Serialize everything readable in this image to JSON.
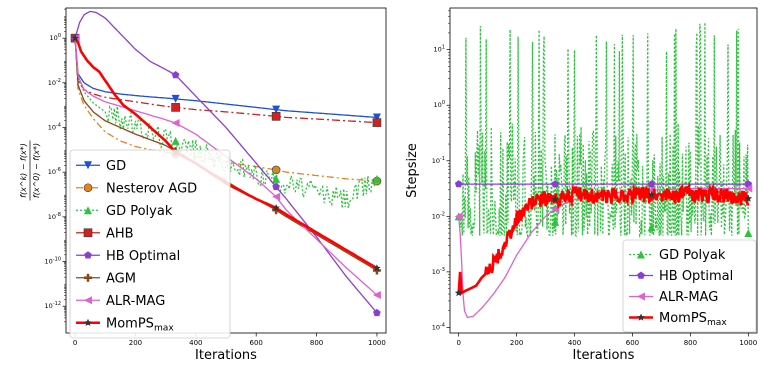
{
  "chart_data": [
    {
      "type": "line",
      "title": "",
      "xlabel": "Iterations",
      "ylabel": "(f(x^k) - f(x*)) / (f(x^0) - f(x*))",
      "ylabel_parts": {
        "numerator": "f(x^k) − f(x*)",
        "denominator": "f(x^0) − f(x*)"
      },
      "yscale": "log",
      "xlim": [
        -30,
        1030
      ],
      "ylim_exp": [
        -13.2,
        1.35
      ],
      "xticks": [
        0,
        200,
        400,
        600,
        800,
        1000
      ],
      "yticks_exp": [
        0,
        -2,
        -4,
        -6,
        -8,
        -10,
        -12
      ],
      "legend_position": "lower-left",
      "series": [
        {
          "name": "GD",
          "color": "#1f4fd8",
          "dash": "",
          "marker": "triangle-down",
          "x": [
            0,
            10,
            30,
            60,
            100,
            150,
            200,
            250,
            300,
            333,
            400,
            500,
            600,
            666,
            700,
            800,
            900,
            1000
          ],
          "y_exp": [
            0,
            -1.6,
            -2.0,
            -2.25,
            -2.4,
            -2.5,
            -2.57,
            -2.63,
            -2.68,
            -2.72,
            -2.8,
            -2.95,
            -3.1,
            -3.2,
            -3.25,
            -3.35,
            -3.45,
            -3.55
          ]
        },
        {
          "name": "Nesterov AGD",
          "color": "#e8821e",
          "dash": "7,3,2,3",
          "marker": "circle",
          "x": [
            0,
            10,
            30,
            60,
            100,
            150,
            200,
            250,
            300,
            350,
            400,
            500,
            600,
            666,
            700,
            800,
            900,
            1000
          ],
          "y_exp": [
            0,
            -2.3,
            -3.0,
            -3.6,
            -4.2,
            -4.6,
            -4.85,
            -5.0,
            -5.1,
            -5.2,
            -5.3,
            -5.55,
            -5.75,
            -5.9,
            -6.0,
            -6.15,
            -6.3,
            -6.4
          ]
        },
        {
          "name": "GD Polyak",
          "color": "#2fc23f",
          "dash": "2,2",
          "marker": "triangle-up",
          "x": [
            0,
            10,
            30,
            60,
            100,
            150,
            200,
            250,
            300,
            333,
            400,
            500,
            600,
            666,
            700,
            800,
            900,
            1000
          ],
          "y_exp": [
            0,
            -1.8,
            -2.4,
            -2.9,
            -3.3,
            -3.6,
            -3.9,
            -4.2,
            -4.5,
            -4.6,
            -5.0,
            -5.6,
            -6.1,
            -6.3,
            -6.5,
            -6.9,
            -7.2,
            -6.3
          ]
        },
        {
          "name": "AHB",
          "color": "#d42020",
          "dash": "8,3,2,3",
          "marker": "square",
          "x": [
            0,
            10,
            30,
            60,
            100,
            150,
            200,
            250,
            300,
            333,
            400,
            500,
            600,
            666,
            700,
            800,
            900,
            1000
          ],
          "y_exp": [
            0,
            -1.9,
            -2.3,
            -2.5,
            -2.65,
            -2.75,
            -2.85,
            -2.95,
            -3.05,
            -3.1,
            -3.2,
            -3.3,
            -3.42,
            -3.5,
            -3.55,
            -3.62,
            -3.7,
            -3.78
          ]
        },
        {
          "name": "HB Optimal",
          "color": "#8a3fd1",
          "dash": "",
          "marker": "pentagon",
          "x": [
            0,
            15,
            30,
            50,
            70,
            100,
            150,
            200,
            250,
            300,
            333,
            400,
            500,
            600,
            700,
            800,
            900,
            1000
          ],
          "y_exp": [
            0,
            0.7,
            1.05,
            1.2,
            1.15,
            0.9,
            0.2,
            -0.5,
            -1.05,
            -1.4,
            -1.65,
            -2.6,
            -4.0,
            -5.6,
            -7.2,
            -8.9,
            -10.7,
            -12.3
          ]
        },
        {
          "name": "AGM",
          "color": "#8b4513",
          "dash": "",
          "marker": "plus",
          "x": [
            0,
            10,
            30,
            60,
            100,
            150,
            200,
            250,
            300,
            350,
            400,
            500,
            600,
            666,
            700,
            800,
            900,
            1000
          ],
          "y_exp": [
            0,
            -2.1,
            -2.8,
            -3.3,
            -3.7,
            -4.0,
            -4.3,
            -4.55,
            -4.8,
            -5.2,
            -5.6,
            -6.4,
            -7.2,
            -7.7,
            -8.0,
            -8.8,
            -9.6,
            -10.4
          ]
        },
        {
          "name": "ALR-MAG",
          "color": "#e060d0",
          "dash": "",
          "marker": "triangle-left",
          "x": [
            0,
            10,
            30,
            60,
            100,
            150,
            200,
            250,
            300,
            333,
            400,
            500,
            600,
            666,
            700,
            800,
            900,
            1000
          ],
          "y_exp": [
            0,
            -1.7,
            -2.3,
            -2.6,
            -2.85,
            -3.05,
            -3.25,
            -3.45,
            -3.65,
            -3.8,
            -4.3,
            -5.3,
            -6.3,
            -7.1,
            -7.7,
            -9.0,
            -10.3,
            -11.5
          ]
        },
        {
          "name": "MomPS_max",
          "color": "#ff0000",
          "dash": "",
          "marker": "star",
          "x": [
            0,
            10,
            20,
            40,
            60,
            80,
            100,
            130,
            160,
            200,
            250,
            300,
            333,
            400,
            500,
            600,
            666,
            700,
            800,
            900,
            1000
          ],
          "y_exp": [
            0,
            -0.2,
            -0.6,
            -1.0,
            -1.3,
            -1.5,
            -1.9,
            -2.5,
            -3.0,
            -3.4,
            -4.0,
            -4.6,
            -5.1,
            -5.6,
            -6.5,
            -7.2,
            -7.6,
            -7.9,
            -8.7,
            -9.5,
            -10.3
          ]
        }
      ]
    },
    {
      "type": "line",
      "title": "",
      "xlabel": "Iterations",
      "ylabel": "Stepsize",
      "yscale": "log",
      "xlim": [
        -30,
        1030
      ],
      "ylim_exp": [
        -4.1,
        1.75
      ],
      "xticks": [
        0,
        200,
        400,
        600,
        800,
        1000
      ],
      "yticks_exp": [
        1,
        0,
        -1,
        -2,
        -3,
        -4
      ],
      "legend_position": "lower-right",
      "series": [
        {
          "name": "GD Polyak",
          "color": "#2fc23f",
          "dash": "2,2",
          "marker": "triangle-up",
          "x": [
            0,
            1000
          ],
          "y_exp": [
            -2.0,
            -2.3
          ],
          "noisy": true,
          "noise_range_exp": [
            -2.35,
            1.5
          ]
        },
        {
          "name": "HB Optimal",
          "color": "#8a3fd1",
          "dash": "",
          "marker": "pentagon",
          "x": [
            0,
            1000
          ],
          "y_exp": [
            -1.42,
            -1.42
          ]
        },
        {
          "name": "ALR-MAG",
          "color": "#e060d0",
          "dash": "",
          "marker": "triangle-left",
          "x": [
            0,
            5,
            10,
            15,
            20,
            30,
            50,
            80,
            120,
            160,
            200,
            250,
            300,
            350,
            400,
            500,
            600,
            700,
            800,
            1000
          ],
          "y_exp": [
            -2.0,
            -2.3,
            -2.8,
            -3.4,
            -3.7,
            -3.82,
            -3.8,
            -3.65,
            -3.4,
            -3.1,
            -2.7,
            -2.3,
            -2.0,
            -1.8,
            -1.7,
            -1.6,
            -1.55,
            -1.52,
            -1.5,
            -1.5
          ]
        },
        {
          "name": "MomPS_max",
          "color": "#ff0000",
          "dash": "",
          "marker": "star",
          "x": [
            0,
            5,
            10,
            20,
            40,
            60,
            80,
            100,
            120,
            140,
            160,
            180,
            200,
            230,
            260,
            300,
            340,
            400,
            500,
            600,
            700,
            800,
            900,
            1000
          ],
          "y_exp": [
            -3.38,
            -3.0,
            -3.38,
            -3.35,
            -3.3,
            -3.25,
            -3.1,
            -3.0,
            -2.85,
            -2.7,
            -2.5,
            -2.3,
            -2.05,
            -1.85,
            -1.72,
            -1.68,
            -1.7,
            -1.6,
            -1.65,
            -1.6,
            -1.62,
            -1.6,
            -1.62,
            -1.68
          ],
          "noisy": true
        }
      ]
    }
  ]
}
